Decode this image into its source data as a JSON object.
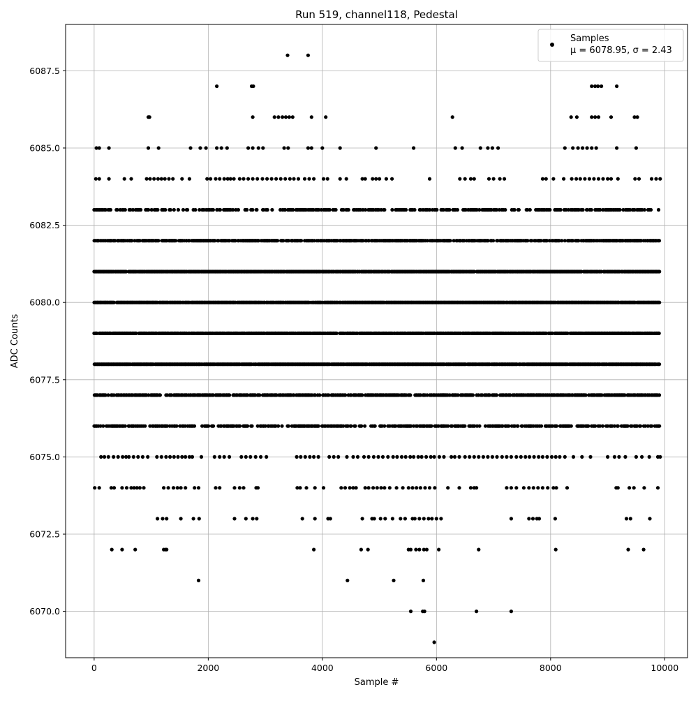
{
  "chart_data": {
    "type": "scatter",
    "title": "Run 519, channel118, Pedestal",
    "xlabel": "Sample #",
    "ylabel": "ADC Counts",
    "xlim": [
      -500,
      10400
    ],
    "ylim": [
      6068.5,
      6089.0
    ],
    "xticks": [
      0,
      2000,
      4000,
      6000,
      8000,
      10000
    ],
    "xtick_labels": [
      "0",
      "2000",
      "4000",
      "6000",
      "8000",
      "10000"
    ],
    "yticks": [
      6070.0,
      6072.5,
      6075.0,
      6077.5,
      6080.0,
      6082.5,
      6085.0,
      6087.5
    ],
    "ytick_labels": [
      "6070.0",
      "6072.5",
      "6075.0",
      "6077.5",
      "6080.0",
      "6082.5",
      "6085.0",
      "6087.5"
    ],
    "grid": true,
    "legend_position": "top-right",
    "legend_series": "Samples",
    "legend_stats": "μ = 6078.95, σ = 2.43",
    "marker_color": "#000000",
    "sample_range": [
      0,
      9900
    ],
    "series": [
      {
        "name": "Samples",
        "levels": [
          {
            "y": 6069,
            "x": [
              5960
            ]
          },
          {
            "y": 6070,
            "x": [
              5550,
              5760,
              5790,
              6700,
              7310
            ]
          },
          {
            "y": 6071,
            "x": [
              1830,
              4440,
              5250,
              5770
            ]
          },
          {
            "y": 6072,
            "x": [
              310,
              490,
              720,
              1220,
              1250,
              1270,
              3850,
              4680,
              4800,
              5510,
              5550,
              5640,
              5700,
              5780,
              5830,
              6040,
              6740,
              8090,
              9360,
              9630
            ]
          },
          {
            "y": 6073,
            "x": [
              1110,
              1200,
              1270,
              1520,
              1740,
              1840,
              2460,
              2660,
              2780,
              2850,
              3650,
              3870,
              4100,
              4140,
              4700,
              4870,
              4910,
              5020,
              5100,
              5230,
              5370,
              5450,
              5580,
              5620,
              5700,
              5780,
              5860,
              5920,
              6000,
              6080,
              7310,
              7620,
              7690,
              7760,
              7800,
              8080,
              9330,
              9400,
              9740
            ]
          },
          {
            "y": 6074,
            "x": [
              10,
              90,
              300,
              350,
              490,
              570,
              650,
              700,
              750,
              800,
              870,
              1220,
              1300,
              1390,
              1460,
              1520,
              1600,
              1760,
              1830,
              2130,
              2200,
              2460,
              2550,
              2620,
              2840,
              2870,
              3560,
              3610,
              3720,
              3870,
              4020,
              4330,
              4400,
              4480,
              4540,
              4590,
              4750,
              4810,
              4890,
              4960,
              5030,
              5090,
              5180,
              5300,
              5410,
              5510,
              5580,
              5650,
              5720,
              5800,
              5880,
              5970,
              6200,
              6400,
              6600,
              6660,
              6700,
              7230,
              7310,
              7400,
              7530,
              7620,
              7700,
              7780,
              7860,
              7950,
              8050,
              8100,
              8290,
              9150,
              9180,
              9380,
              9460,
              9640,
              9880
            ]
          },
          {
            "y": 6075,
            "x": [
              120,
              180,
              250,
              340,
              420,
              500,
              560,
              610,
              690,
              770,
              850,
              940,
              1100,
              1180,
              1260,
              1330,
              1400,
              1470,
              1540,
              1600,
              1670,
              1720,
              1880,
              2110,
              2200,
              2280,
              2370,
              2580,
              2660,
              2740,
              2830,
              2920,
              3020,
              3550,
              3620,
              3700,
              3780,
              3850,
              3930,
              4120,
              4200,
              4280,
              4430,
              4540,
              4620,
              4730,
              4810,
              4900,
              4980,
              5060,
              5150,
              5240,
              5310,
              5390,
              5460,
              5540,
              5600,
              5680,
              5740,
              5820,
              5900,
              5960,
              6050,
              6130,
              6260,
              6320,
              6400,
              6500,
              6580,
              6660,
              6740,
              6820,
              6900,
              6980,
              7060,
              7150,
              7230,
              7310,
              7400,
              7480,
              7560,
              7630,
              7710,
              7790,
              7860,
              7940,
              8020,
              8090,
              8160,
              8250,
              8400,
              8550,
              8700,
              9000,
              9120,
              9200,
              9310,
              9500,
              9600,
              9730,
              9880,
              9920
            ]
          },
          {
            "y": 6077,
            "x": []
          },
          {
            "y": 6083,
            "x": []
          },
          {
            "y": 6084,
            "x": [
              30,
              90,
              260,
              530,
              650,
              920,
              980,
              1050,
              1120,
              1180,
              1240,
              1310,
              1380,
              1540,
              1670,
              1980,
              2040,
              2130,
              2200,
              2280,
              2340,
              2390,
              2450,
              2550,
              2620,
              2700,
              2780,
              2860,
              2950,
              3030,
              3110,
              3190,
              3270,
              3350,
              3430,
              3500,
              3580,
              3690,
              3770,
              3850,
              4020,
              4090,
              4310,
              4420,
              4700,
              4750,
              4880,
              4940,
              5000,
              5120,
              5220,
              5880,
              6410,
              6500,
              6600,
              6660,
              6920,
              7000,
              7110,
              7190,
              7860,
              7920,
              8050,
              8230,
              8370,
              8450,
              8520,
              8600,
              8680,
              8760,
              8840,
              8920,
              9000,
              9060,
              9180,
              9480,
              9550,
              9770,
              9850,
              9920
            ]
          },
          {
            "y": 6085,
            "x": [
              40,
              90,
              260,
              950,
              1130,
              1690,
              1860,
              1960,
              2150,
              2230,
              2330,
              2700,
              2780,
              2880,
              2960,
              3330,
              3400,
              3750,
              3810,
              4000,
              4310,
              4940,
              5600,
              6330,
              6450,
              6770,
              6900,
              6980,
              7080,
              8250,
              8390,
              8480,
              8560,
              8640,
              8720,
              8800,
              9160,
              9500
            ]
          },
          {
            "y": 6086,
            "x": [
              950,
              970,
              2780,
              3160,
              3230,
              3300,
              3360,
              3420,
              3480,
              3810,
              4060,
              6280,
              8360,
              8460,
              8720,
              8780,
              8840,
              9060,
              9470,
              9520
            ]
          },
          {
            "y": 6087,
            "x": [
              2150,
              2760,
              2790,
              8720,
              8780,
              8830,
              8890,
              9160
            ]
          },
          {
            "y": 6088,
            "x": [
              3390,
              3750
            ]
          }
        ],
        "dense_levels": [
          6076,
          6077,
          6078,
          6079,
          6080,
          6081,
          6082,
          6083
        ]
      }
    ]
  }
}
